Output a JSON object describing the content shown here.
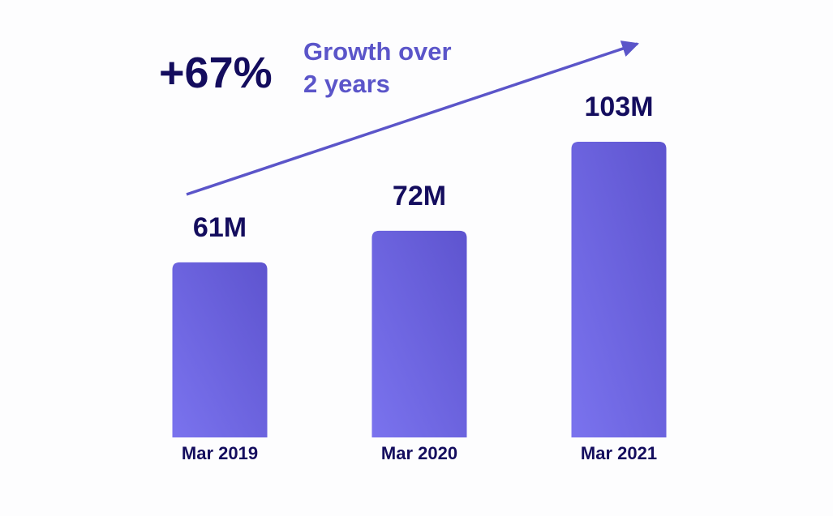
{
  "headline": {
    "value": "+67%",
    "text_lines": [
      "Growth over",
      "2 years"
    ]
  },
  "colors": {
    "bar_top": "#5e54cf",
    "bar_bottom": "#7a73ee",
    "arrow": "#5b55c9",
    "headline_text": "#5b55c9",
    "labels": "#140d5e",
    "background": "#fdfdfe"
  },
  "chart_data": {
    "type": "bar",
    "categories": [
      "Mar 2019",
      "Mar 2020",
      "Mar 2021"
    ],
    "values": [
      61,
      72,
      103
    ],
    "value_labels": [
      "61M",
      "72M",
      "103M"
    ],
    "unit": "M",
    "title": "",
    "xlabel": "",
    "ylabel": "",
    "ylim": [
      0,
      103
    ],
    "grid": false,
    "legend": "none",
    "annotations": [
      {
        "type": "arrow",
        "label": "+67% Growth over 2 years"
      }
    ]
  }
}
